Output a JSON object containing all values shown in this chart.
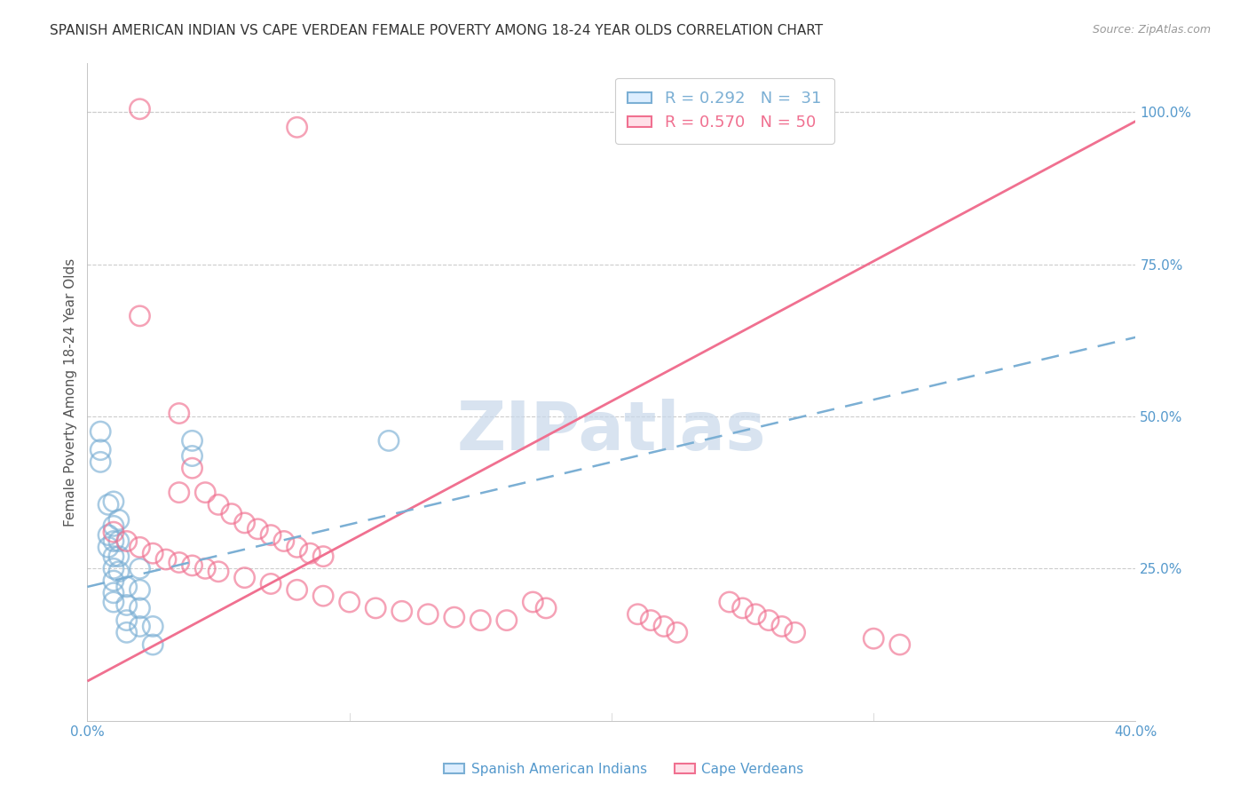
{
  "title": "SPANISH AMERICAN INDIAN VS CAPE VERDEAN FEMALE POVERTY AMONG 18-24 YEAR OLDS CORRELATION CHART",
  "source": "Source: ZipAtlas.com",
  "ylabel": "Female Poverty Among 18-24 Year Olds",
  "xlim": [
    0.0,
    0.4
  ],
  "ylim": [
    0.0,
    1.08
  ],
  "xticks": [
    0.0,
    0.05,
    0.1,
    0.15,
    0.2,
    0.25,
    0.3,
    0.35,
    0.4
  ],
  "xticklabels": [
    "0.0%",
    "",
    "",
    "",
    "",
    "",
    "",
    "",
    "40.0%"
  ],
  "yticks": [
    0.25,
    0.5,
    0.75,
    1.0
  ],
  "yticklabels": [
    "25.0%",
    "50.0%",
    "75.0%",
    "100.0%"
  ],
  "blue_color": "#7BAFD4",
  "pink_color": "#F07090",
  "watermark": "ZIPatlas",
  "watermark_color": "#C8D8EA",
  "title_fontsize": 11,
  "axis_color": "#5599CC",
  "grid_color": "#CCCCCC",
  "blue_scatter": [
    [
      0.005,
      0.475
    ],
    [
      0.005,
      0.445
    ],
    [
      0.005,
      0.425
    ],
    [
      0.008,
      0.355
    ],
    [
      0.008,
      0.305
    ],
    [
      0.008,
      0.285
    ],
    [
      0.01,
      0.36
    ],
    [
      0.01,
      0.32
    ],
    [
      0.01,
      0.295
    ],
    [
      0.01,
      0.27
    ],
    [
      0.01,
      0.25
    ],
    [
      0.01,
      0.23
    ],
    [
      0.01,
      0.21
    ],
    [
      0.01,
      0.195
    ],
    [
      0.012,
      0.33
    ],
    [
      0.012,
      0.295
    ],
    [
      0.012,
      0.27
    ],
    [
      0.012,
      0.245
    ],
    [
      0.015,
      0.22
    ],
    [
      0.015,
      0.19
    ],
    [
      0.015,
      0.165
    ],
    [
      0.015,
      0.145
    ],
    [
      0.02,
      0.25
    ],
    [
      0.02,
      0.215
    ],
    [
      0.02,
      0.185
    ],
    [
      0.02,
      0.155
    ],
    [
      0.025,
      0.155
    ],
    [
      0.025,
      0.125
    ],
    [
      0.04,
      0.46
    ],
    [
      0.04,
      0.435
    ],
    [
      0.115,
      0.46
    ]
  ],
  "pink_scatter": [
    [
      0.02,
      1.005
    ],
    [
      0.08,
      0.975
    ],
    [
      0.02,
      0.665
    ],
    [
      0.035,
      0.505
    ],
    [
      0.04,
      0.415
    ],
    [
      0.035,
      0.375
    ],
    [
      0.045,
      0.375
    ],
    [
      0.05,
      0.355
    ],
    [
      0.055,
      0.34
    ],
    [
      0.06,
      0.325
    ],
    [
      0.065,
      0.315
    ],
    [
      0.07,
      0.305
    ],
    [
      0.075,
      0.295
    ],
    [
      0.08,
      0.285
    ],
    [
      0.085,
      0.275
    ],
    [
      0.09,
      0.27
    ],
    [
      0.01,
      0.31
    ],
    [
      0.015,
      0.295
    ],
    [
      0.02,
      0.285
    ],
    [
      0.025,
      0.275
    ],
    [
      0.03,
      0.265
    ],
    [
      0.035,
      0.26
    ],
    [
      0.04,
      0.255
    ],
    [
      0.045,
      0.25
    ],
    [
      0.05,
      0.245
    ],
    [
      0.06,
      0.235
    ],
    [
      0.07,
      0.225
    ],
    [
      0.08,
      0.215
    ],
    [
      0.09,
      0.205
    ],
    [
      0.1,
      0.195
    ],
    [
      0.11,
      0.185
    ],
    [
      0.12,
      0.18
    ],
    [
      0.13,
      0.175
    ],
    [
      0.14,
      0.17
    ],
    [
      0.15,
      0.165
    ],
    [
      0.16,
      0.165
    ],
    [
      0.17,
      0.195
    ],
    [
      0.175,
      0.185
    ],
    [
      0.21,
      0.175
    ],
    [
      0.215,
      0.165
    ],
    [
      0.22,
      0.155
    ],
    [
      0.225,
      0.145
    ],
    [
      0.245,
      0.195
    ],
    [
      0.25,
      0.185
    ],
    [
      0.255,
      0.175
    ],
    [
      0.26,
      0.165
    ],
    [
      0.265,
      0.155
    ],
    [
      0.27,
      0.145
    ],
    [
      0.3,
      0.135
    ],
    [
      0.31,
      0.125
    ]
  ],
  "blue_line_x": [
    0.0,
    0.4
  ],
  "blue_line_y": [
    0.22,
    0.63
  ],
  "pink_line_x": [
    0.0,
    0.4
  ],
  "pink_line_y": [
    0.065,
    0.985
  ],
  "legend_blue_R": "0.292",
  "legend_blue_N": "31",
  "legend_pink_R": "0.570",
  "legend_pink_N": "50",
  "background_color": "#FFFFFF"
}
